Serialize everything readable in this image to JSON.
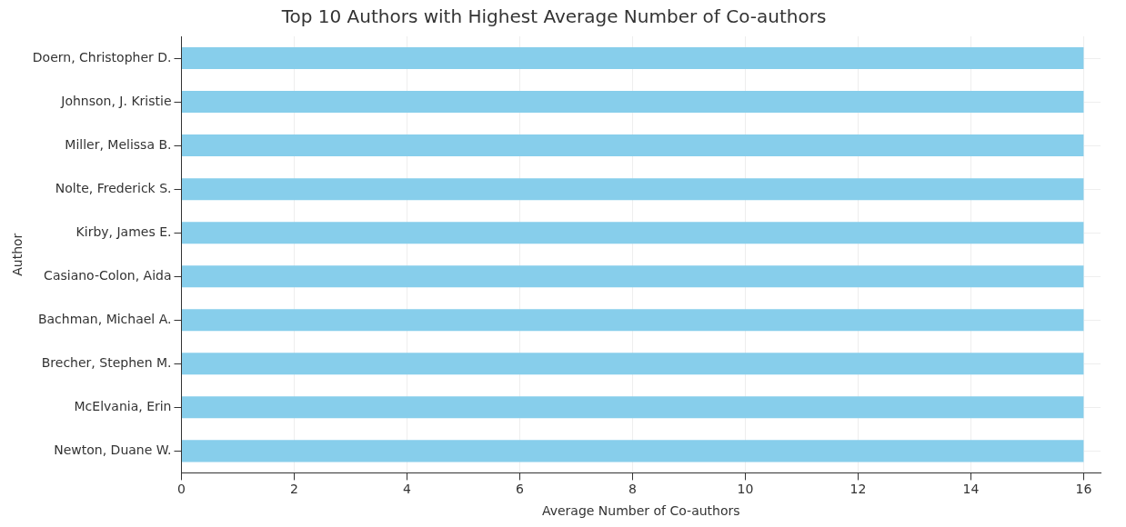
{
  "chart_data": {
    "type": "bar",
    "orientation": "horizontal",
    "title": "Top 10 Authors with Highest Average Number of Co-authors",
    "xlabel": "Average Number of Co-authors",
    "ylabel": "Author",
    "categories": [
      "Doern, Christopher D.",
      "Johnson, J. Kristie",
      "Miller, Melissa B.",
      "Nolte, Frederick S.",
      "Kirby, James E.",
      "Casiano-Colon, Aida",
      "Bachman, Michael A.",
      "Brecher, Stephen M.",
      "McElvania, Erin",
      "Newton, Duane W."
    ],
    "values": [
      16,
      16,
      16,
      16,
      16,
      16,
      16,
      16,
      16,
      16
    ],
    "color": "#87ceeb",
    "xlim": [
      0,
      16.3
    ],
    "xticks": [
      0,
      2,
      4,
      6,
      8,
      10,
      12,
      14,
      16
    ],
    "grid": true
  }
}
